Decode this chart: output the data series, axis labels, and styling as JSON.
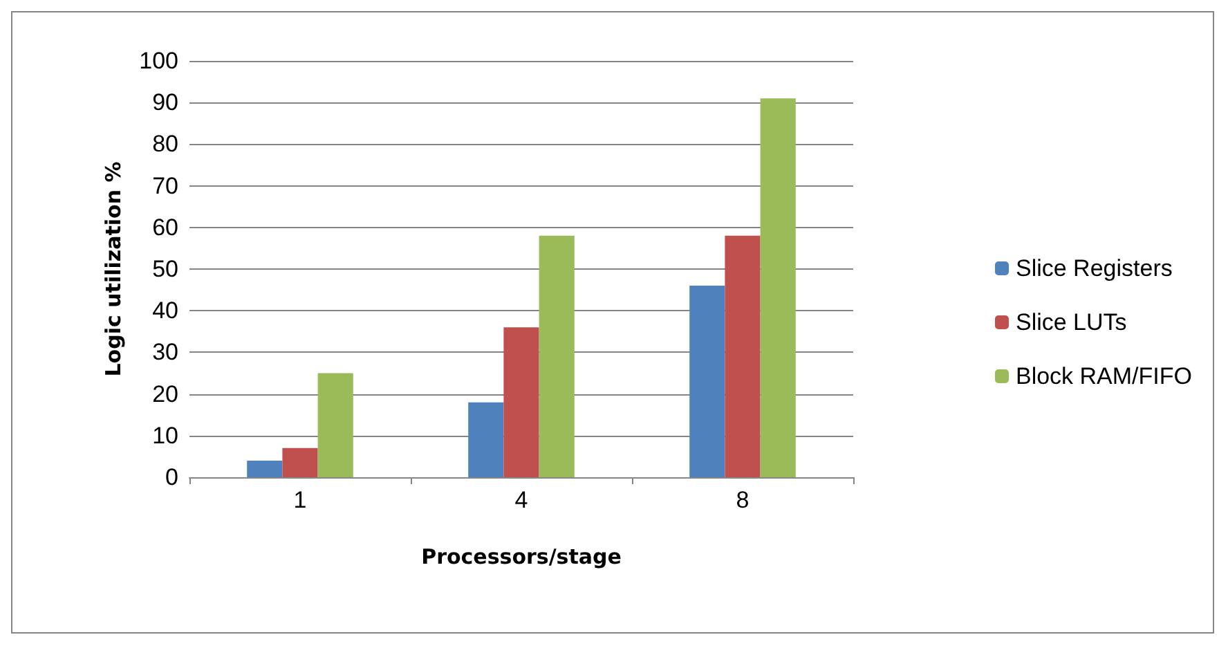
{
  "chart_data": {
    "type": "bar",
    "xlabel": "Processors/stage",
    "ylabel": "Logic utilization %",
    "categories": [
      "1",
      "4",
      "8"
    ],
    "series": [
      {
        "name": "Slice Registers",
        "color": "#4f81bd",
        "values": [
          4,
          18,
          46
        ]
      },
      {
        "name": "Slice LUTs",
        "color": "#c0504d",
        "values": [
          7,
          36,
          58
        ]
      },
      {
        "name": "Block RAM/FIFO",
        "color": "#9bbb59",
        "values": [
          25,
          58,
          91
        ]
      }
    ],
    "ylim": [
      0,
      100
    ],
    "yticks": [
      0,
      10,
      20,
      30,
      40,
      50,
      60,
      70,
      80,
      90,
      100
    ],
    "grid": "y",
    "legend": "right"
  }
}
